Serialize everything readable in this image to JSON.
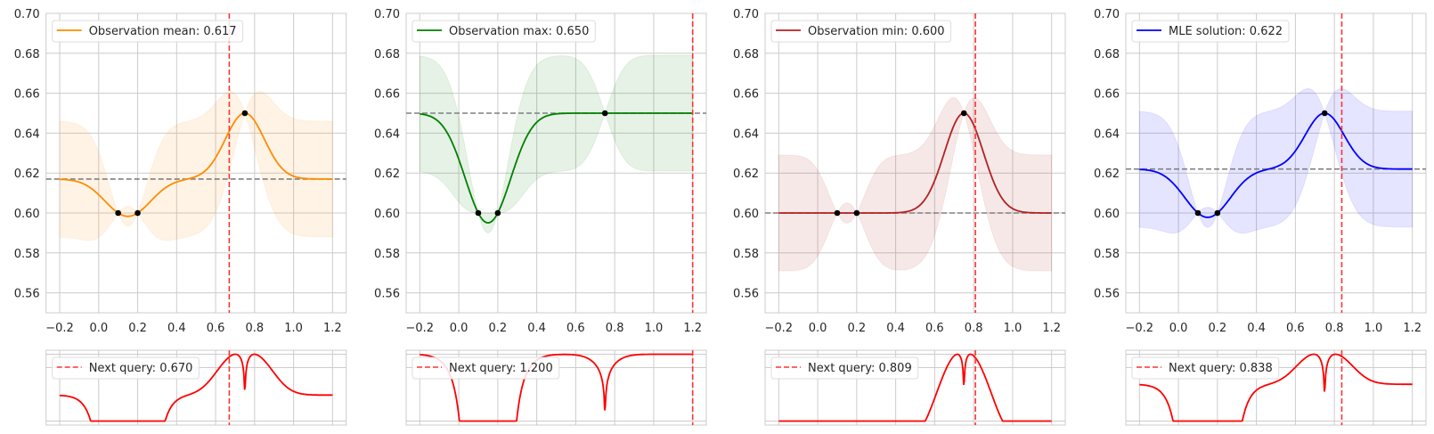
{
  "chart_data": [
    {
      "type": "line",
      "panel": "main",
      "legend": "Observation mean: 0.617",
      "legend_placement": "top-left",
      "color": "#ff8c00",
      "prior_mean": 0.617,
      "observations": {
        "x": [
          0.1,
          0.2,
          0.75
        ],
        "y": [
          0.6,
          0.6,
          0.65
        ]
      },
      "band": "mean ± 2 std (shaded)",
      "next_query": 0.67,
      "acquisition_legend": "Next query: 0.670",
      "xlim": [
        -0.27,
        1.27
      ],
      "ylim": [
        0.55,
        0.7
      ],
      "xticks": [
        "−0.2",
        "0.0",
        "0.2",
        "0.4",
        "0.6",
        "0.8",
        "1.0",
        "1.2"
      ],
      "yticks": [
        "0.56",
        "0.58",
        "0.60",
        "0.62",
        "0.64",
        "0.66",
        "0.68",
        "0.70"
      ],
      "grid": true
    },
    {
      "type": "line",
      "panel": "main",
      "legend": "Observation max: 0.650",
      "legend_placement": "top-left",
      "color": "#008000",
      "prior_mean": 0.65,
      "observations": {
        "x": [
          0.1,
          0.2,
          0.75
        ],
        "y": [
          0.6,
          0.6,
          0.65
        ]
      },
      "band": "mean ± 2 std (shaded)",
      "next_query": 1.2,
      "acquisition_legend": "Next query: 1.200",
      "xlim": [
        -0.27,
        1.27
      ],
      "ylim": [
        0.55,
        0.7
      ],
      "xticks": [
        "−0.2",
        "0.0",
        "0.2",
        "0.4",
        "0.6",
        "0.8",
        "1.0",
        "1.2"
      ],
      "yticks": [
        "0.56",
        "0.58",
        "0.60",
        "0.62",
        "0.64",
        "0.66",
        "0.68",
        "0.70"
      ],
      "grid": true
    },
    {
      "type": "line",
      "panel": "main",
      "legend": "Observation min: 0.600",
      "legend_placement": "top-left",
      "color": "#b22222",
      "prior_mean": 0.6,
      "observations": {
        "x": [
          0.1,
          0.2,
          0.75
        ],
        "y": [
          0.6,
          0.6,
          0.65
        ]
      },
      "band": "mean ± 2 std (shaded)",
      "next_query": 0.809,
      "acquisition_legend": "Next query: 0.809",
      "xlim": [
        -0.27,
        1.27
      ],
      "ylim": [
        0.55,
        0.7
      ],
      "xticks": [
        "−0.2",
        "0.0",
        "0.2",
        "0.4",
        "0.6",
        "0.8",
        "1.0",
        "1.2"
      ],
      "yticks": [
        "0.56",
        "0.58",
        "0.60",
        "0.62",
        "0.64",
        "0.66",
        "0.68",
        "0.70"
      ],
      "grid": true
    },
    {
      "type": "line",
      "panel": "main",
      "legend": "MLE solution: 0.622",
      "legend_placement": "top-left",
      "color": "#0000ff",
      "prior_mean": 0.622,
      "observations": {
        "x": [
          0.1,
          0.2,
          0.75
        ],
        "y": [
          0.6,
          0.6,
          0.65
        ]
      },
      "band": "mean ± 2 std (shaded)",
      "next_query": 0.838,
      "acquisition_legend": "Next query: 0.838",
      "xlim": [
        -0.27,
        1.27
      ],
      "ylim": [
        0.55,
        0.7
      ],
      "xticks": [
        "−0.2",
        "0.0",
        "0.2",
        "0.4",
        "0.6",
        "0.8",
        "1.0",
        "1.2"
      ],
      "yticks": [
        "0.56",
        "0.58",
        "0.60",
        "0.62",
        "0.64",
        "0.66",
        "0.68",
        "0.70"
      ],
      "grid": true
    }
  ],
  "colors": {
    "acquisition": "#ff0000",
    "next_query_line": "#ff3333",
    "prior_line": "#808080",
    "observation_marker": "#000000"
  }
}
